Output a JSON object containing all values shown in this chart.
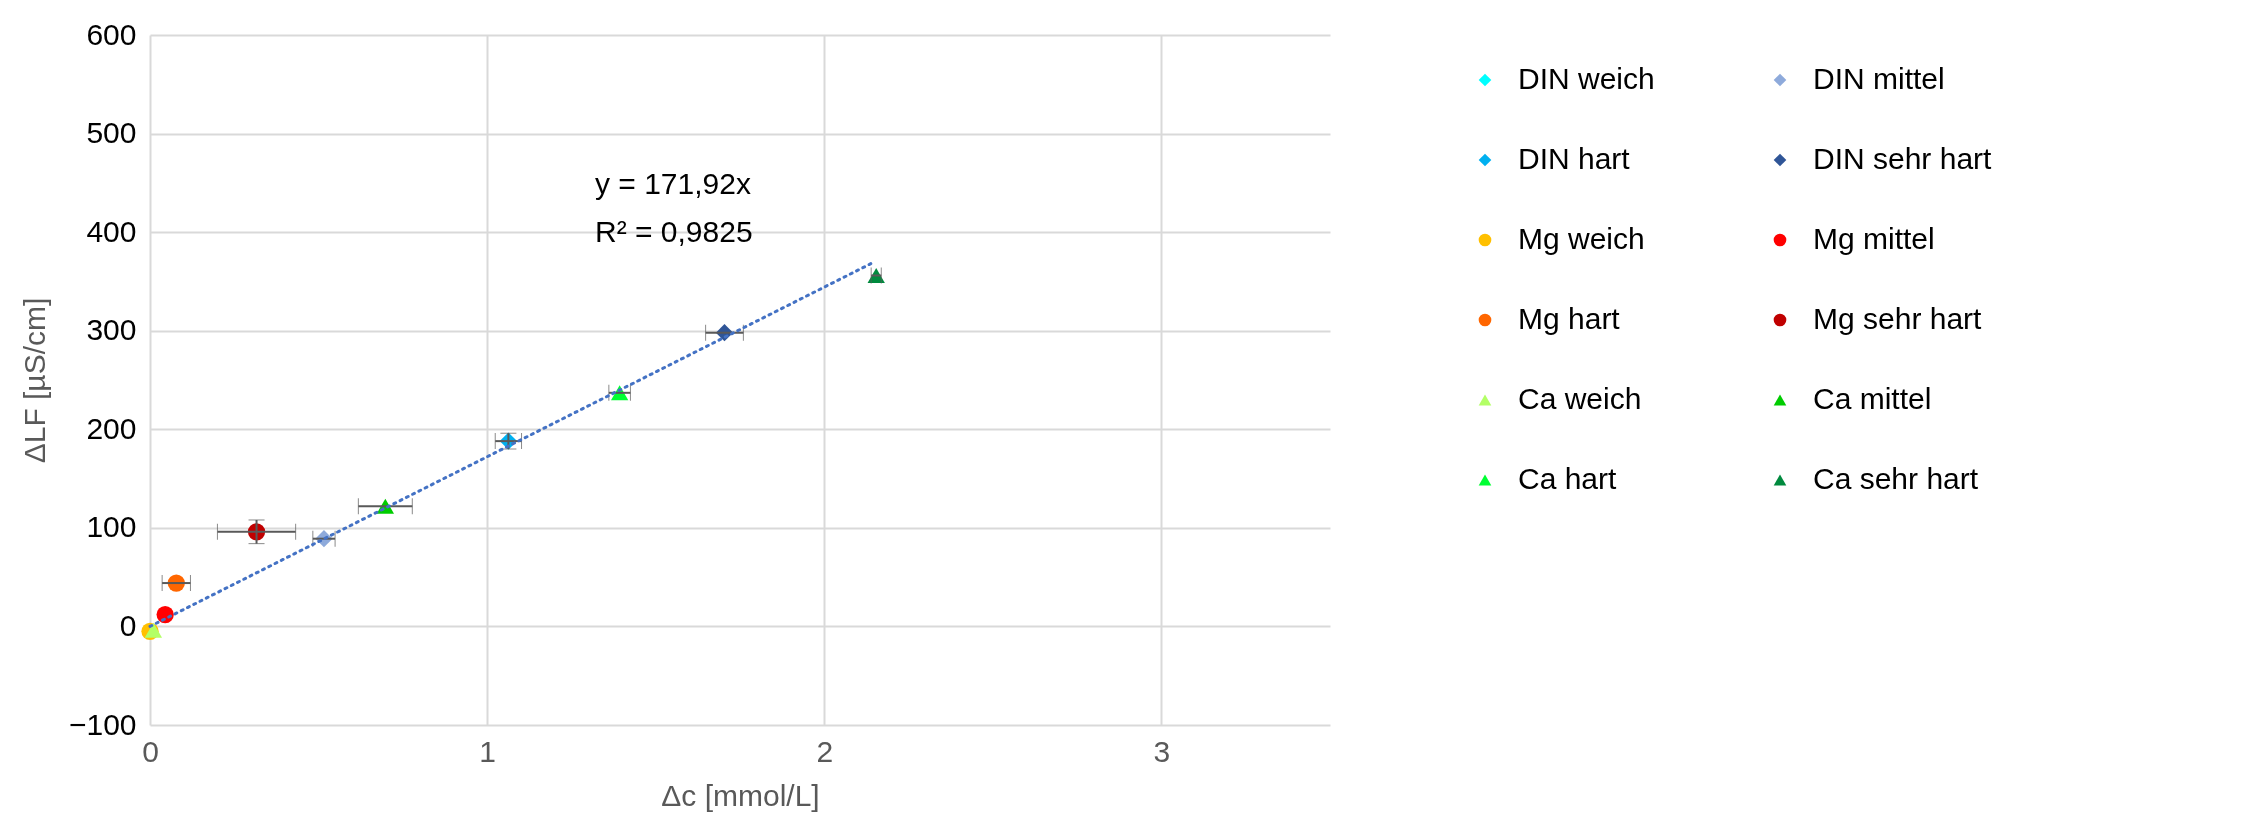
{
  "chart_data": {
    "type": "scatter",
    "xlabel": "Δc [mmol/L]",
    "ylabel": "ΔLF [µS/cm]",
    "xlim": [
      0,
      3.5
    ],
    "xticks": [
      0,
      1,
      2,
      3
    ],
    "ylim": [
      -100,
      600
    ],
    "yticks": [
      -100,
      0,
      100,
      200,
      300,
      400,
      500,
      600
    ],
    "grid": true,
    "legend": "right",
    "annotations": [
      "y = 171,92x",
      "R² = 0,9825"
    ],
    "series": [
      {
        "name": "DIN weich",
        "color": "#00ffff",
        "marker": "diamond",
        "x": [
          null
        ],
        "values": [
          null
        ]
      },
      {
        "name": "DIN mittel",
        "color": "#8eaadb",
        "marker": "diamond",
        "x": [
          0.516
        ],
        "values": [
          89
        ],
        "xerrors": [
          0.033
        ]
      },
      {
        "name": "DIN hart",
        "color": "#00b0f0",
        "marker": "diamond",
        "x": [
          1.063
        ],
        "values": [
          188
        ],
        "xerrors": [
          0.039
        ],
        "errors": [
          8
        ]
      },
      {
        "name": "DIN sehr hart",
        "color": "#2f5597",
        "marker": "diamond",
        "x": [
          1.704
        ],
        "values": [
          298
        ],
        "xerrors": [
          0.056
        ]
      },
      {
        "name": "Mg weich",
        "color": "#ffc000",
        "marker": "circle",
        "x": [
          0
        ],
        "values": [
          -5
        ]
      },
      {
        "name": "Mg mittel",
        "color": "#ff0000",
        "marker": "circle",
        "x": [
          0.045
        ],
        "values": [
          12
        ]
      },
      {
        "name": "Mg hart",
        "color": "#ff6600",
        "marker": "circle",
        "x": [
          0.078
        ],
        "values": [
          44
        ],
        "xerrors": [
          0.042
        ]
      },
      {
        "name": "Mg sehr hart",
        "color": "#c00000",
        "marker": "circle",
        "x": [
          0.316
        ],
        "values": [
          96
        ],
        "xerrors": [
          0.116
        ],
        "errors": [
          12
        ]
      },
      {
        "name": "Ca weich",
        "color": "#b3ff66",
        "marker": "triangle",
        "x": [
          0.01
        ],
        "values": [
          -4
        ]
      },
      {
        "name": "Ca mittel",
        "color": "#00cc00",
        "marker": "triangle",
        "x": [
          0.698
        ],
        "values": [
          122
        ],
        "xerrors": [
          0.08
        ]
      },
      {
        "name": "Ca hart",
        "color": "#00ff33",
        "marker": "triangle",
        "x": [
          1.393
        ],
        "values": [
          237
        ],
        "xerrors": [
          0.032
        ]
      },
      {
        "name": "Ca sehr hart",
        "color": "#008a3e",
        "marker": "triangle",
        "x": [
          2.154
        ],
        "values": [
          356
        ],
        "xerrors": [
          0.015
        ]
      },
      {
        "type": "line",
        "color": "#4472c4",
        "line_style": "dotted",
        "x": [
          0,
          2.138
        ],
        "values": [
          0,
          368
        ]
      }
    ]
  }
}
